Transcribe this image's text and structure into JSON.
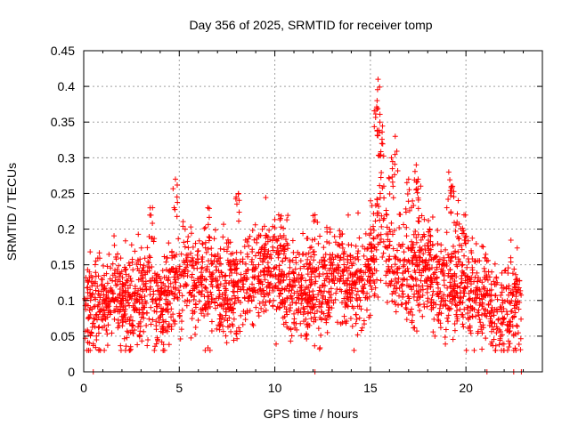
{
  "chart_data": {
    "type": "scatter",
    "title": "Day 356 of 2025, SRMTID for receiver tomp",
    "xlabel": "GPS time / hours",
    "ylabel": "SRMTID / TECUs",
    "xlim": [
      0,
      24
    ],
    "ylim": [
      0,
      0.45
    ],
    "xticks": [
      0,
      5,
      10,
      15,
      20
    ],
    "xtick_labels": [
      "0",
      "5",
      "10",
      "15",
      "20"
    ],
    "yticks": [
      0,
      0.05,
      0.1,
      0.15,
      0.2,
      0.25,
      0.3,
      0.35,
      0.4,
      0.45
    ],
    "ytick_labels": [
      "0",
      "0.05",
      "0.1",
      "0.15",
      "0.2",
      "0.25",
      "0.3",
      "0.35",
      "0.4",
      "0.45"
    ],
    "grid": true,
    "marker": "+",
    "color": "#ff0000",
    "series": [
      {
        "name": "SRMTID",
        "trend_points": [
          [
            0.0,
            0.1
          ],
          [
            0.5,
            0.085
          ],
          [
            1.0,
            0.09
          ],
          [
            1.5,
            0.115
          ],
          [
            2.0,
            0.1
          ],
          [
            2.5,
            0.095
          ],
          [
            3.0,
            0.105
          ],
          [
            3.5,
            0.12
          ],
          [
            4.0,
            0.09
          ],
          [
            4.5,
            0.115
          ],
          [
            5.0,
            0.135
          ],
          [
            5.5,
            0.14
          ],
          [
            6.0,
            0.13
          ],
          [
            6.5,
            0.125
          ],
          [
            7.0,
            0.12
          ],
          [
            7.5,
            0.105
          ],
          [
            8.0,
            0.12
          ],
          [
            8.5,
            0.125
          ],
          [
            9.0,
            0.135
          ],
          [
            9.5,
            0.14
          ],
          [
            10.0,
            0.13
          ],
          [
            10.5,
            0.135
          ],
          [
            11.0,
            0.11
          ],
          [
            11.5,
            0.115
          ],
          [
            12.0,
            0.12
          ],
          [
            12.5,
            0.11
          ],
          [
            13.0,
            0.13
          ],
          [
            13.5,
            0.14
          ],
          [
            14.0,
            0.12
          ],
          [
            14.5,
            0.13
          ],
          [
            15.0,
            0.15
          ],
          [
            15.5,
            0.2
          ],
          [
            16.0,
            0.17
          ],
          [
            16.5,
            0.14
          ],
          [
            17.0,
            0.135
          ],
          [
            17.5,
            0.15
          ],
          [
            18.0,
            0.14
          ],
          [
            18.5,
            0.11
          ],
          [
            19.0,
            0.12
          ],
          [
            19.5,
            0.12
          ],
          [
            20.0,
            0.11
          ],
          [
            20.5,
            0.115
          ],
          [
            21.0,
            0.105
          ],
          [
            21.5,
            0.09
          ],
          [
            22.0,
            0.085
          ],
          [
            22.5,
            0.085
          ],
          [
            22.9,
            0.09
          ]
        ],
        "spikes": [
          [
            3.6,
            0.23
          ],
          [
            4.8,
            0.27
          ],
          [
            6.5,
            0.23
          ],
          [
            8.1,
            0.25
          ],
          [
            10.2,
            0.22
          ],
          [
            12.1,
            0.22
          ],
          [
            15.4,
            0.41
          ],
          [
            15.35,
            0.38
          ],
          [
            15.5,
            0.35
          ],
          [
            15.6,
            0.32
          ],
          [
            16.3,
            0.33
          ],
          [
            16.1,
            0.3
          ],
          [
            17.0,
            0.27
          ],
          [
            17.4,
            0.29
          ],
          [
            17.5,
            0.27
          ],
          [
            18.1,
            0.2
          ],
          [
            19.1,
            0.28
          ],
          [
            19.3,
            0.26
          ],
          [
            19.6,
            0.24
          ],
          [
            19.9,
            0.22
          ]
        ],
        "zero_points": [
          [
            0.5,
            0.0
          ],
          [
            12.1,
            0.0
          ],
          [
            21.1,
            0.0
          ],
          [
            22.5,
            0.0
          ],
          [
            22.9,
            0.0
          ]
        ],
        "x_range": [
          0.0,
          22.9
        ],
        "point_count": 2600,
        "spread": 0.035,
        "seed": 356
      }
    ]
  }
}
